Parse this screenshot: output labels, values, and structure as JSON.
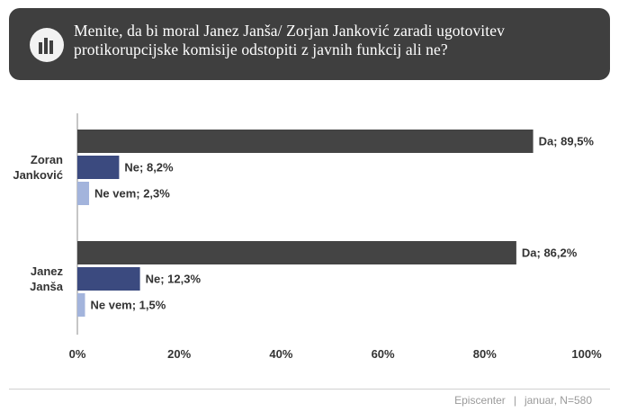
{
  "header": {
    "title": "Menite, da bi moral Janez Janša/ Zorjan Janković zaradi  ugotovitev protikorupcijske komisije  odstopiti z javnih funkcij ali ne?"
  },
  "chart_data": {
    "type": "bar",
    "orientation": "horizontal",
    "categories": [
      {
        "label_lines": [
          "Zoran",
          "Janković"
        ]
      },
      {
        "label_lines": [
          "Janez",
          "Janša"
        ]
      }
    ],
    "series": [
      {
        "name": "Da",
        "values": [
          89.5,
          86.2
        ],
        "labels": [
          "Da; 89,5%",
          "Da; 86,2%"
        ],
        "color": "#444444"
      },
      {
        "name": "Ne",
        "values": [
          8.2,
          12.3
        ],
        "labels": [
          "Ne; 8,2%",
          "Ne; 12,3%"
        ],
        "color": "#3b4a7f"
      },
      {
        "name": "Ne vem",
        "values": [
          2.3,
          1.5
        ],
        "labels": [
          "Ne vem; 2,3%",
          "Ne vem; 1,5%"
        ],
        "color": "#a3b4dc"
      }
    ],
    "xlim": [
      0,
      100
    ],
    "xticks": [
      "0%",
      "20%",
      "40%",
      "60%",
      "80%",
      "100%"
    ],
    "grid": false,
    "legend": "none"
  },
  "footer": {
    "source": "Episcenter",
    "separator": "|",
    "note": "januar, N=580"
  }
}
